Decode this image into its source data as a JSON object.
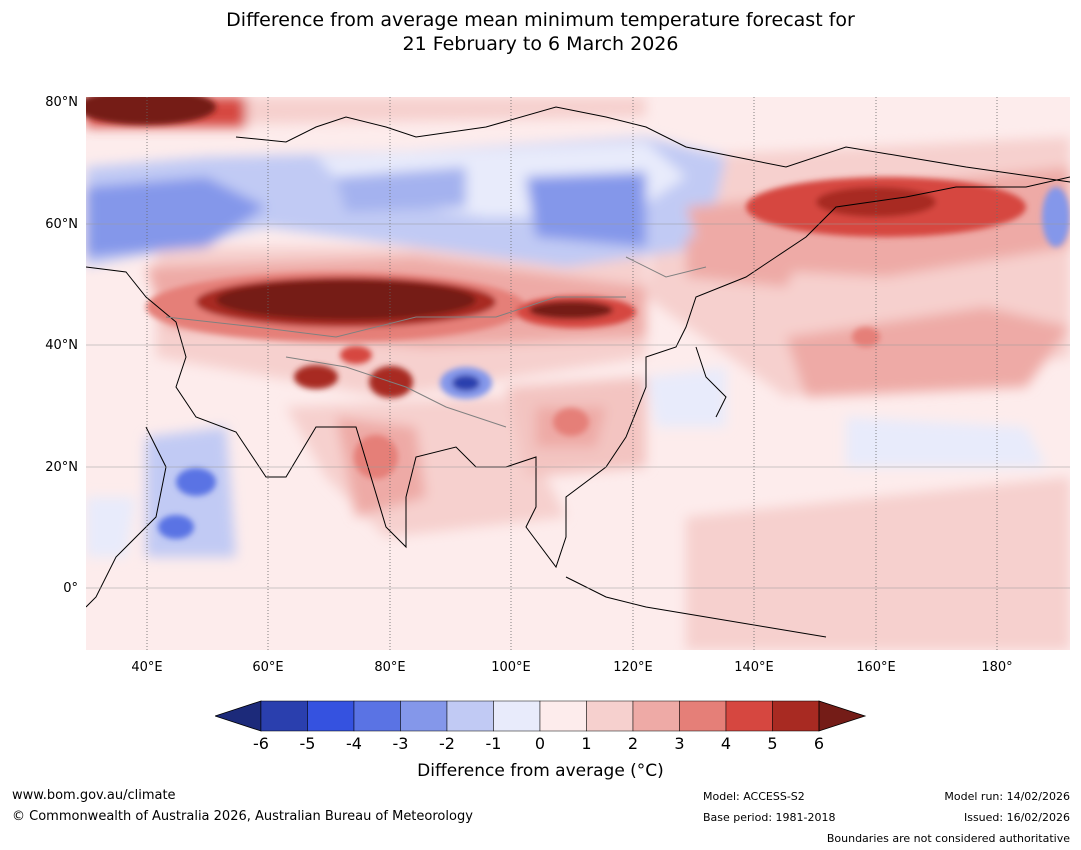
{
  "title": {
    "line1": "Difference from average mean minimum temperature forecast for",
    "line2": "21 February to 6 March 2026"
  },
  "map": {
    "lat_labels": [
      "80°N",
      "60°N",
      "40°N",
      "20°N",
      "0°"
    ],
    "lon_labels": [
      "40°E",
      "60°E",
      "80°E",
      "100°E",
      "120°E",
      "140°E",
      "160°E",
      "180°"
    ],
    "lon_range": [
      30,
      192
    ],
    "lat_range": [
      -10,
      81
    ],
    "anomaly_regions": [
      {
        "name": "central-asia-warm",
        "anomaly": 6
      },
      {
        "name": "mongolia-warm",
        "anomaly": 6
      },
      {
        "name": "far-east-russia-warm",
        "anomaly": 5
      },
      {
        "name": "northwest-arctic-warm",
        "anomaly": 6
      },
      {
        "name": "tibetan-plateau-warm",
        "anomaly": 5
      },
      {
        "name": "tibet-cold",
        "anomaly": -5
      },
      {
        "name": "northern-siberia-cold",
        "anomaly": -3
      },
      {
        "name": "arabia-horn-of-africa-cold",
        "anomaly": -4
      },
      {
        "name": "west-pacific-cool",
        "anomaly": -1
      },
      {
        "name": "india-warm",
        "anomaly": 2
      }
    ]
  },
  "colorbar": {
    "title": "Difference from average (°C)",
    "ticks": [
      "-6",
      "-5",
      "-4",
      "-3",
      "-2",
      "-1",
      "0",
      "1",
      "2",
      "3",
      "4",
      "5",
      "6"
    ],
    "colors": [
      "#1c2a7a",
      "#2a3fae",
      "#3552e0",
      "#5a73e4",
      "#8497ea",
      "#c1caf4",
      "#e8ebfb",
      "#fdecec",
      "#f6d0ce",
      "#eeaaa6",
      "#e57f78",
      "#d64740",
      "#a82a22",
      "#741c17"
    ]
  },
  "footer": {
    "website": "www.bom.gov.au/climate",
    "copyright": "© Commonwealth of Australia 2026, Australian Bureau of Meteorology",
    "model": "Model: ACCESS-S2",
    "base_period": "Base period: 1981-2018",
    "model_run": "Model run: 14/02/2026",
    "issued": "Issued: 16/02/2026",
    "boundaries_note": "Boundaries are not considered authoritative"
  }
}
